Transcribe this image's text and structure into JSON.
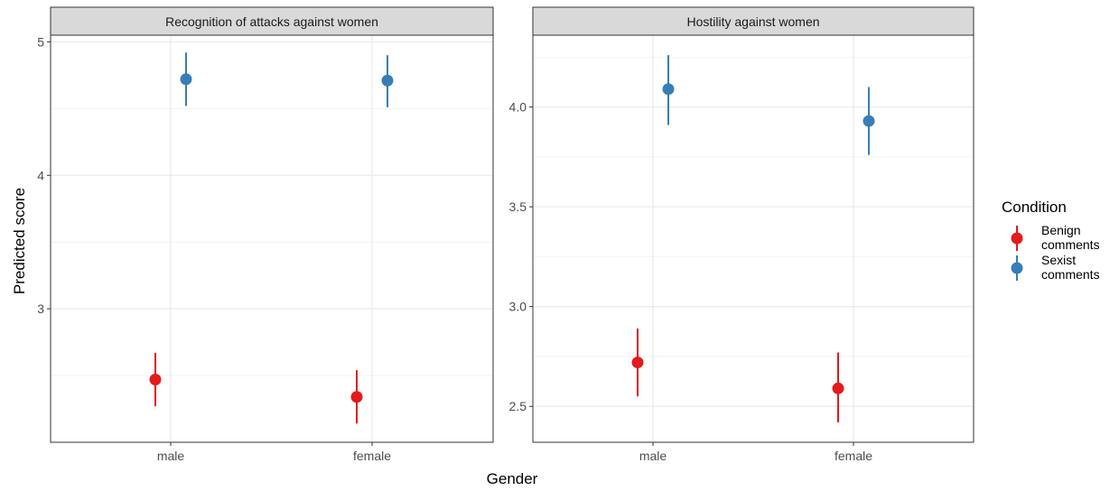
{
  "chart_data": {
    "type": "scatter",
    "subtype": "point-range",
    "xlabel": "Gender",
    "ylabel": "Predicted score",
    "categories": [
      "male",
      "female"
    ],
    "legend": {
      "title": "Condition",
      "position": "right",
      "entries": [
        {
          "label": [
            "Benign",
            "comments"
          ],
          "color": "#E41A1C"
        },
        {
          "label": [
            "Sexist",
            "comments"
          ],
          "color": "#377EB8"
        }
      ]
    },
    "grid": true,
    "panels": [
      {
        "title": "Recognition of attacks against women",
        "ylim": [
          2.0,
          5.05
        ],
        "yticks": [
          3,
          4,
          5
        ],
        "yticklabels": [
          "3",
          "4",
          "5"
        ],
        "series": [
          {
            "name": "Benign comments",
            "color": "#E41A1C",
            "points": [
              {
                "x": "male",
                "y": 2.47,
                "low": 2.27,
                "high": 2.67
              },
              {
                "x": "female",
                "y": 2.34,
                "low": 2.14,
                "high": 2.54
              }
            ]
          },
          {
            "name": "Sexist comments",
            "color": "#377EB8",
            "points": [
              {
                "x": "male",
                "y": 4.72,
                "low": 4.52,
                "high": 4.92
              },
              {
                "x": "female",
                "y": 4.71,
                "low": 4.51,
                "high": 4.9
              }
            ]
          }
        ]
      },
      {
        "title": "Hostility against women",
        "ylim": [
          2.32,
          4.36
        ],
        "yticks": [
          2.5,
          3.0,
          3.5,
          4.0
        ],
        "yticklabels": [
          "2.5",
          "3.0",
          "3.5",
          "4.0"
        ],
        "series": [
          {
            "name": "Benign comments",
            "color": "#E41A1C",
            "points": [
              {
                "x": "male",
                "y": 2.72,
                "low": 2.55,
                "high": 2.89
              },
              {
                "x": "female",
                "y": 2.59,
                "low": 2.42,
                "high": 2.77
              }
            ]
          },
          {
            "name": "Sexist comments",
            "color": "#377EB8",
            "points": [
              {
                "x": "male",
                "y": 4.09,
                "low": 3.91,
                "high": 4.26
              },
              {
                "x": "female",
                "y": 3.93,
                "low": 3.76,
                "high": 4.1
              }
            ]
          }
        ]
      }
    ]
  }
}
